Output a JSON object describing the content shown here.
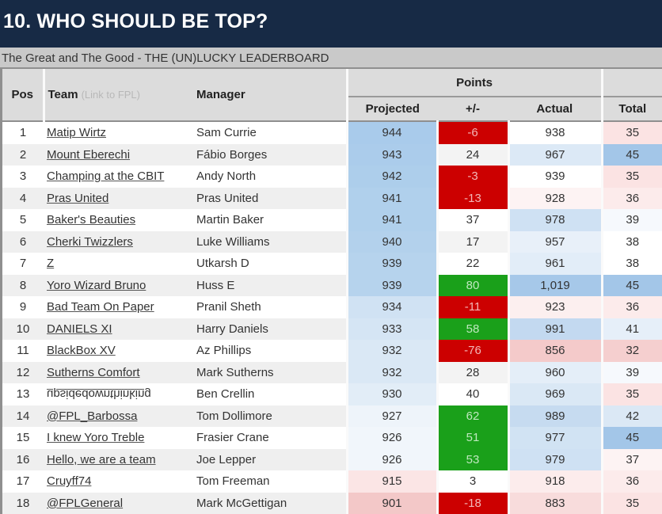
{
  "header": {
    "title": "10. WHO SHOULD BE TOP?",
    "subtitle": "The Great and The Good - THE (UN)LUCKY LEADERBOARD"
  },
  "table": {
    "columns": {
      "pos": "Pos",
      "team": "Team",
      "team_hint": "(Link to FPL)",
      "manager": "Manager",
      "points_group": "Points",
      "projected": "Projected",
      "diff": "+/-",
      "actual": "Actual",
      "total": "Total"
    },
    "colors": {
      "header_bg": "#172a45",
      "positive_diff": "#1aa01a",
      "negative_diff": "#cc0000",
      "blue_strong": "#9dc3e6",
      "red_light": "#f5cfcf"
    },
    "rows": [
      {
        "pos": "1",
        "team": "Matip Wirtz",
        "manager": "Sam Currie",
        "projected": "944",
        "diff": "-6",
        "actual": "938",
        "total": "35",
        "proj_bg": "#a9cbeb",
        "diff_bg": "#cc0000",
        "diff_fg": "#f3b7b7",
        "actual_bg": "#ffffff",
        "total_bg": "#fbe3e3"
      },
      {
        "pos": "2",
        "team": "Mount Eberechi",
        "manager": "Fábio Borges",
        "projected": "943",
        "diff": "24",
        "actual": "967",
        "total": "45",
        "proj_bg": "#abcceb",
        "diff_bg": "#f3f3f3",
        "diff_fg": "#333",
        "actual_bg": "#dce9f6",
        "total_bg": "#a3c6e8"
      },
      {
        "pos": "3",
        "team": "Champing at the CBIT",
        "manager": "Andy North",
        "projected": "942",
        "diff": "-3",
        "actual": "939",
        "total": "35",
        "proj_bg": "#adceeb",
        "diff_bg": "#cc0000",
        "diff_fg": "#f3b7b7",
        "actual_bg": "#ffffff",
        "total_bg": "#fbe3e3"
      },
      {
        "pos": "4",
        "team": "Pras United",
        "manager": "Pras United",
        "projected": "941",
        "diff": "-13",
        "actual": "928",
        "total": "36",
        "proj_bg": "#b0d0ec",
        "diff_bg": "#cc0000",
        "diff_fg": "#f3b7b7",
        "actual_bg": "#fdf3f3",
        "total_bg": "#fcebeb"
      },
      {
        "pos": "5",
        "team": "Baker's Beauties",
        "manager": "Martin Baker",
        "projected": "941",
        "diff": "37",
        "actual": "978",
        "total": "39",
        "proj_bg": "#b0d0ec",
        "diff_bg": "#ffffff",
        "diff_fg": "#333",
        "actual_bg": "#cfe1f3",
        "total_bg": "#f6f9fd"
      },
      {
        "pos": "6",
        "team": "Cherki Twizzlers",
        "manager": "Luke Williams",
        "projected": "940",
        "diff": "17",
        "actual": "957",
        "total": "38",
        "proj_bg": "#b3d1ec",
        "diff_bg": "#f3f3f3",
        "diff_fg": "#333",
        "actual_bg": "#e8f0f9",
        "total_bg": "#ffffff"
      },
      {
        "pos": "7",
        "team": "Z",
        "manager": "Utkarsh D",
        "projected": "939",
        "diff": "22",
        "actual": "961",
        "total": "38",
        "proj_bg": "#b6d3ed",
        "diff_bg": "#ffffff",
        "diff_fg": "#333",
        "actual_bg": "#e2edf8",
        "total_bg": "#ffffff"
      },
      {
        "pos": "8",
        "team": "Yoro Wizard Bruno",
        "manager": "Huss E",
        "projected": "939",
        "diff": "80",
        "actual": "1,019",
        "total": "45",
        "proj_bg": "#b6d3ed",
        "diff_bg": "#1aa01a",
        "diff_fg": "#bfe8bf",
        "actual_bg": "#a6c8e9",
        "total_bg": "#a3c6e8"
      },
      {
        "pos": "9",
        "team": "Bad Team On Paper",
        "manager": "Pranil Sheth",
        "projected": "934",
        "diff": "-11",
        "actual": "923",
        "total": "36",
        "proj_bg": "#d0e2f3",
        "diff_bg": "#cc0000",
        "diff_fg": "#f3b7b7",
        "actual_bg": "#fcefef",
        "total_bg": "#fcebeb"
      },
      {
        "pos": "10",
        "team": "DANIELS XI",
        "manager": "Harry Daniels",
        "projected": "933",
        "diff": "58",
        "actual": "991",
        "total": "41",
        "proj_bg": "#d5e5f4",
        "diff_bg": "#1aa01a",
        "diff_fg": "#bfe8bf",
        "actual_bg": "#c3d9f0",
        "total_bg": "#e6eff9"
      },
      {
        "pos": "11",
        "team": "BlackBox XV",
        "manager": "Az Phillips",
        "projected": "932",
        "diff": "-76",
        "actual": "856",
        "total": "32",
        "proj_bg": "#dae8f5",
        "diff_bg": "#cc0000",
        "diff_fg": "#f3b7b7",
        "actual_bg": "#f4caca",
        "total_bg": "#f5cfcf"
      },
      {
        "pos": "12",
        "team": "Sutherns Comfort",
        "manager": "Mark Sutherns",
        "projected": "932",
        "diff": "28",
        "actual": "960",
        "total": "39",
        "proj_bg": "#dae8f5",
        "diff_bg": "#f3f3f3",
        "diff_fg": "#333",
        "actual_bg": "#e4eef8",
        "total_bg": "#f6f9fd"
      },
      {
        "pos": "13",
        "team": "upsidedownthinking",
        "manager": "Ben Crellin",
        "projected": "930",
        "diff": "40",
        "actual": "969",
        "total": "35",
        "proj_bg": "#e2edf7",
        "diff_bg": "#ffffff",
        "diff_fg": "#333",
        "actual_bg": "#dae8f5",
        "total_bg": "#fbe3e3"
      },
      {
        "pos": "14",
        "team": "@FPL_Barbossa",
        "manager": "Tom Dollimore",
        "projected": "927",
        "diff": "62",
        "actual": "989",
        "total": "42",
        "proj_bg": "#eef4fa",
        "diff_bg": "#1aa01a",
        "diff_fg": "#bfe8bf",
        "actual_bg": "#c6dbf0",
        "total_bg": "#dbe8f5"
      },
      {
        "pos": "15",
        "team": "I knew Yoro Treble",
        "manager": "Frasier Crane",
        "projected": "926",
        "diff": "51",
        "actual": "977",
        "total": "45",
        "proj_bg": "#f1f6fb",
        "diff_bg": "#1aa01a",
        "diff_fg": "#bfe8bf",
        "actual_bg": "#d1e3f3",
        "total_bg": "#a3c6e8"
      },
      {
        "pos": "16",
        "team": "Hello, we are a team",
        "manager": "Joe Lepper",
        "projected": "926",
        "diff": "53",
        "actual": "979",
        "total": "37",
        "proj_bg": "#f1f6fb",
        "diff_bg": "#1aa01a",
        "diff_fg": "#bfe8bf",
        "actual_bg": "#cfe1f3",
        "total_bg": "#fdf3f3"
      },
      {
        "pos": "17",
        "team": "Cruyff74",
        "manager": "Tom Freeman",
        "projected": "915",
        "diff": "3",
        "actual": "918",
        "total": "36",
        "proj_bg": "#fbe5e5",
        "diff_bg": "#ffffff",
        "diff_fg": "#333",
        "actual_bg": "#fcecec",
        "total_bg": "#fcebeb"
      },
      {
        "pos": "18",
        "team": "@FPLGeneral",
        "manager": "Mark McGettigan",
        "projected": "901",
        "diff": "-18",
        "actual": "883",
        "total": "35",
        "proj_bg": "#f3c8c8",
        "diff_bg": "#cc0000",
        "diff_fg": "#f3b7b7",
        "actual_bg": "#f8dcdc",
        "total_bg": "#fbe3e3"
      }
    ]
  }
}
